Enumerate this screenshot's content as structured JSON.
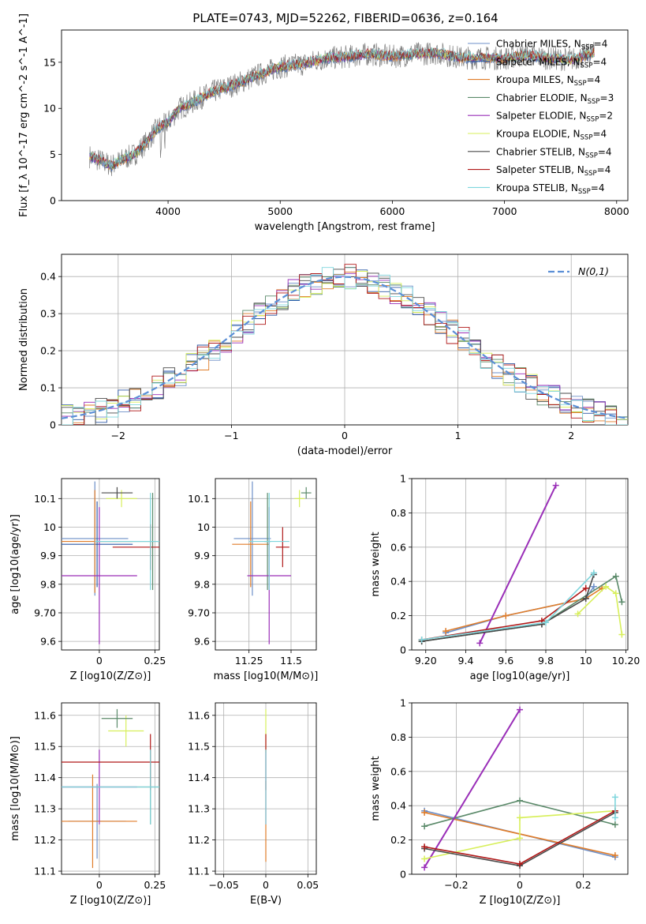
{
  "title": "PLATE=0743, MJD=52262, FIBERID=0636, z=0.164",
  "models": [
    {
      "name": "Chabrier MILES",
      "nssp": "4",
      "color": "#6d8fc8"
    },
    {
      "name": "Salpeter MILES",
      "nssp": "4",
      "color": "#2f5aa6"
    },
    {
      "name": "Kroupa MILES",
      "nssp": "4",
      "color": "#e07d2a"
    },
    {
      "name": "Chabrier ELODIE",
      "nssp": "3",
      "color": "#5b8a6a"
    },
    {
      "name": "Salpeter ELODIE",
      "nssp": "2",
      "color": "#9a2fb8"
    },
    {
      "name": "Kroupa ELODIE",
      "nssp": "4",
      "color": "#d7ef5a"
    },
    {
      "name": "Chabrier STELIB",
      "nssp": "4",
      "color": "#4a4a4a"
    },
    {
      "name": "Salpeter STELIB",
      "nssp": "4",
      "color": "#b01818"
    },
    {
      "name": "Kroupa STELIB",
      "nssp": "4",
      "color": "#7fd6dd"
    }
  ],
  "chart_data": [
    {
      "type": "line",
      "id": "spectrum",
      "xlabel": "wavelength [Angstrom, rest frame]",
      "ylabel": "Flux [f_λ 10^-17 erg cm^-2 s^-1 A^-1]",
      "xlim": [
        3050,
        8100
      ],
      "ylim": [
        0,
        18.5
      ],
      "xticks": [
        4000,
        5000,
        6000,
        7000,
        8000
      ],
      "yticks": [
        0,
        5,
        10,
        15
      ],
      "data_color": "#808080",
      "data": {
        "x": [
          3300,
          3400,
          3500,
          3600,
          3700,
          3800,
          3900,
          4000,
          4100,
          4200,
          4300,
          4400,
          4600,
          4800,
          5000,
          5200,
          5400,
          5600,
          5800,
          6000,
          6200,
          6400,
          6600,
          6800,
          7000,
          7200,
          7400,
          7600,
          7800
        ],
        "y": [
          4.8,
          4.3,
          3.8,
          4.5,
          5.0,
          6.2,
          7.8,
          8.5,
          10.0,
          10.5,
          11.2,
          11.8,
          12.6,
          13.6,
          14.5,
          14.8,
          15.4,
          15.6,
          15.9,
          15.6,
          15.9,
          16.0,
          15.5,
          15.5,
          15.4,
          15.8,
          15.4,
          15.3,
          16.0
        ]
      },
      "legend": "upper right",
      "grid": false
    },
    {
      "type": "histogram",
      "id": "residuals",
      "xlabel": "(data-model)/error",
      "ylabel": "Normed distribution",
      "xlim": [
        -2.5,
        2.5
      ],
      "ylim": [
        0,
        0.46
      ],
      "xticks": [
        -2,
        -1,
        0,
        1,
        2
      ],
      "yticks": [
        0.0,
        0.1,
        0.2,
        0.3,
        0.4
      ],
      "curve_label": "N(0,1)",
      "curve_color": "#5b8fd6",
      "grid": true,
      "legend": "upper right"
    },
    {
      "type": "scatter",
      "id": "age_vs_Z",
      "xlabel": "Z [log10(Z/Z⊙)]",
      "ylabel": "age [log10(age/yr)]",
      "xlim": [
        -0.17,
        0.27
      ],
      "ylim": [
        9.57,
        10.17
      ],
      "xticks": [
        -0.25,
        0.0,
        0.25
      ],
      "yticks": [
        9.6,
        9.7,
        9.8,
        9.9,
        10.0,
        10.1
      ],
      "points": [
        {
          "x": -0.02,
          "y": 9.96,
          "xerr": 0.15,
          "yerr": 0.2,
          "c": 0
        },
        {
          "x": -0.01,
          "y": 9.94,
          "xerr": 0.16,
          "yerr": 0.15,
          "c": 1
        },
        {
          "x": -0.02,
          "y": 9.95,
          "xerr": 0.17,
          "yerr": 0.18,
          "c": 2
        },
        {
          "x": 0.24,
          "y": 9.95,
          "xerr": 0.25,
          "yerr": 0.17,
          "c": 3
        },
        {
          "x": 0.0,
          "y": 9.83,
          "xerr": 0.17,
          "yerr": 0.24,
          "c": 4
        },
        {
          "x": 0.1,
          "y": 10.1,
          "xerr": 0.07,
          "yerr": 0.03,
          "c": 5
        },
        {
          "x": 0.08,
          "y": 10.12,
          "xerr": 0.07,
          "yerr": 0.02,
          "c": 6
        },
        {
          "x": 0.23,
          "y": 9.93,
          "xerr": 0.17,
          "yerr": 0.08,
          "c": 7
        },
        {
          "x": 0.23,
          "y": 9.95,
          "xerr": 0.25,
          "yerr": 0.17,
          "c": 8
        }
      ]
    },
    {
      "type": "scatter",
      "id": "age_vs_mass",
      "xlabel": "mass [log10(M/M⊙)]",
      "ylabel": "",
      "xlim": [
        11.05,
        11.65
      ],
      "ylim": [
        9.57,
        10.17
      ],
      "xticks": [
        11.25,
        11.5
      ],
      "yticks": [
        9.6,
        9.7,
        9.8,
        9.9,
        10.0,
        10.1
      ],
      "points": [
        {
          "x": 11.27,
          "y": 9.96,
          "xerr": 0.11,
          "yerr": 0.2,
          "c": 0
        },
        {
          "x": 11.26,
          "y": 9.94,
          "xerr": 0.11,
          "yerr": 0.15,
          "c": 2
        },
        {
          "x": 11.36,
          "y": 9.95,
          "xerr": 0.02,
          "yerr": 0.17,
          "c": 3
        },
        {
          "x": 11.37,
          "y": 9.83,
          "xerr": 0.13,
          "yerr": 0.24,
          "c": 4
        },
        {
          "x": 11.55,
          "y": 10.1,
          "xerr": 0.03,
          "yerr": 0.03,
          "c": 5
        },
        {
          "x": 11.59,
          "y": 10.12,
          "xerr": 0.03,
          "yerr": 0.02,
          "c": 3
        },
        {
          "x": 11.45,
          "y": 9.93,
          "xerr": 0.04,
          "yerr": 0.07,
          "c": 7
        },
        {
          "x": 11.37,
          "y": 9.95,
          "xerr": 0.12,
          "yerr": 0.17,
          "c": 8
        }
      ]
    },
    {
      "type": "line",
      "id": "weight_vs_age",
      "xlabel": "age [log10(age/yr)]",
      "ylabel": "mass weight",
      "xlim": [
        9.13,
        10.21
      ],
      "ylim": [
        0,
        1
      ],
      "xticks": [
        9.2,
        9.4,
        9.6,
        9.8,
        10.0,
        10.2
      ],
      "yticks": [
        0.0,
        0.2,
        0.4,
        0.6,
        0.8,
        1.0
      ],
      "grid": true,
      "series": [
        {
          "c": 0,
          "x": [
            9.3,
            9.6,
            10.0,
            10.04
          ],
          "y": [
            0.1,
            0.2,
            0.3,
            0.37
          ]
        },
        {
          "c": 2,
          "x": [
            9.3,
            9.6,
            10.0,
            10.08
          ],
          "y": [
            0.11,
            0.2,
            0.3,
            0.36
          ]
        },
        {
          "c": 3,
          "x": [
            9.18,
            9.78,
            10.15,
            10.18
          ],
          "y": [
            0.05,
            0.15,
            0.43,
            0.28
          ]
        },
        {
          "c": 4,
          "x": [
            9.47,
            9.85
          ],
          "y": [
            0.04,
            0.96
          ]
        },
        {
          "c": 5,
          "x": [
            9.96,
            10.1,
            10.15,
            10.18
          ],
          "y": [
            0.21,
            0.37,
            0.33,
            0.09
          ]
        },
        {
          "c": 6,
          "x": [
            9.18,
            9.78,
            10.0,
            10.04
          ],
          "y": [
            0.05,
            0.15,
            0.3,
            0.44
          ]
        },
        {
          "c": 7,
          "x": [
            9.18,
            9.78,
            10.0
          ],
          "y": [
            0.06,
            0.17,
            0.36
          ]
        },
        {
          "c": 8,
          "x": [
            9.18,
            9.8,
            10.04
          ],
          "y": [
            0.06,
            0.16,
            0.45
          ]
        }
      ]
    },
    {
      "type": "scatter",
      "id": "mass_vs_Z",
      "xlabel": "Z [log10(Z/Z⊙)]",
      "ylabel": "mass [log10(M/M⊙)]",
      "xlim": [
        -0.17,
        0.27
      ],
      "ylim": [
        11.09,
        11.64
      ],
      "xticks": [
        -0.25,
        0.0,
        0.25
      ],
      "yticks": [
        11.1,
        11.2,
        11.3,
        11.4,
        11.5,
        11.6
      ],
      "points": [
        {
          "x": -0.01,
          "y": 11.26,
          "xerr": 0.13,
          "yerr": 0.12,
          "c": 0
        },
        {
          "x": -0.03,
          "y": 11.26,
          "xerr": 0.2,
          "yerr": 0.15,
          "c": 2
        },
        {
          "x": 0.23,
          "y": 11.37,
          "xerr": 0.42,
          "yerr": 0.12,
          "c": 3
        },
        {
          "x": 0.0,
          "y": 11.37,
          "xerr": 0.17,
          "yerr": 0.12,
          "c": 4
        },
        {
          "x": 0.12,
          "y": 11.55,
          "xerr": 0.08,
          "yerr": 0.05,
          "c": 5
        },
        {
          "x": 0.08,
          "y": 11.59,
          "xerr": 0.07,
          "yerr": 0.03,
          "c": 3
        },
        {
          "x": 0.23,
          "y": 11.45,
          "xerr": 0.4,
          "yerr": 0.09,
          "c": 7
        },
        {
          "x": 0.23,
          "y": 11.37,
          "xerr": 0.42,
          "yerr": 0.12,
          "c": 8
        }
      ]
    },
    {
      "type": "scatter",
      "id": "mass_vs_ebv",
      "xlabel": "E(B-V)",
      "ylabel": "",
      "xlim": [
        -0.06,
        0.06
      ],
      "ylim": [
        11.09,
        11.64
      ],
      "xticks": [
        -0.05,
        0.0,
        0.05
      ],
      "yticks": [
        11.1,
        11.2,
        11.3,
        11.4,
        11.5,
        11.6
      ],
      "points": [
        {
          "x": 0.0,
          "y": 11.26,
          "yerr": 0.13,
          "c": 2
        },
        {
          "x": 0.0,
          "y": 11.37,
          "yerr": 0.12,
          "c": 4
        },
        {
          "x": 0.0,
          "y": 11.55,
          "yerr": 0.07,
          "c": 5
        },
        {
          "x": 0.0,
          "y": 11.45,
          "yerr": 0.09,
          "c": 7
        },
        {
          "x": 0.0,
          "y": 11.37,
          "yerr": 0.12,
          "c": 8
        }
      ]
    },
    {
      "type": "line",
      "id": "weight_vs_Z",
      "xlabel": "Z [log10(Z/Z⊙)]",
      "ylabel": "mass weight",
      "xlim": [
        -0.34,
        0.34
      ],
      "ylim": [
        0,
        1
      ],
      "xticks": [
        -0.2,
        0.0,
        0.2
      ],
      "yticks": [
        0.0,
        0.2,
        0.4,
        0.6,
        0.8,
        1.0
      ],
      "grid": true,
      "series": [
        {
          "c": 0,
          "x": [
            -0.3,
            0.3
          ],
          "y": [
            0.37,
            0.1
          ]
        },
        {
          "c": 2,
          "x": [
            -0.3,
            0.3
          ],
          "y": [
            0.36,
            0.11
          ]
        },
        {
          "c": 3,
          "x": [
            -0.3,
            0.0,
            0.3
          ],
          "y": [
            0.28,
            0.43,
            0.29
          ]
        },
        {
          "c": 4,
          "x": [
            -0.3,
            0.0
          ],
          "y": [
            0.04,
            0.96
          ]
        },
        {
          "c": 5,
          "x": [
            -0.3,
            0.0,
            0.0,
            0.3
          ],
          "y": [
            0.09,
            0.21,
            0.33,
            0.37
          ]
        },
        {
          "c": 6,
          "x": [
            -0.3,
            0.0,
            0.3
          ],
          "y": [
            0.15,
            0.05,
            0.36
          ]
        },
        {
          "c": 7,
          "x": [
            -0.3,
            0.0,
            0.3
          ],
          "y": [
            0.16,
            0.06,
            0.37
          ]
        },
        {
          "c": 8,
          "x": [
            0.3,
            0.3
          ],
          "y": [
            0.33,
            0.45
          ]
        }
      ]
    }
  ]
}
